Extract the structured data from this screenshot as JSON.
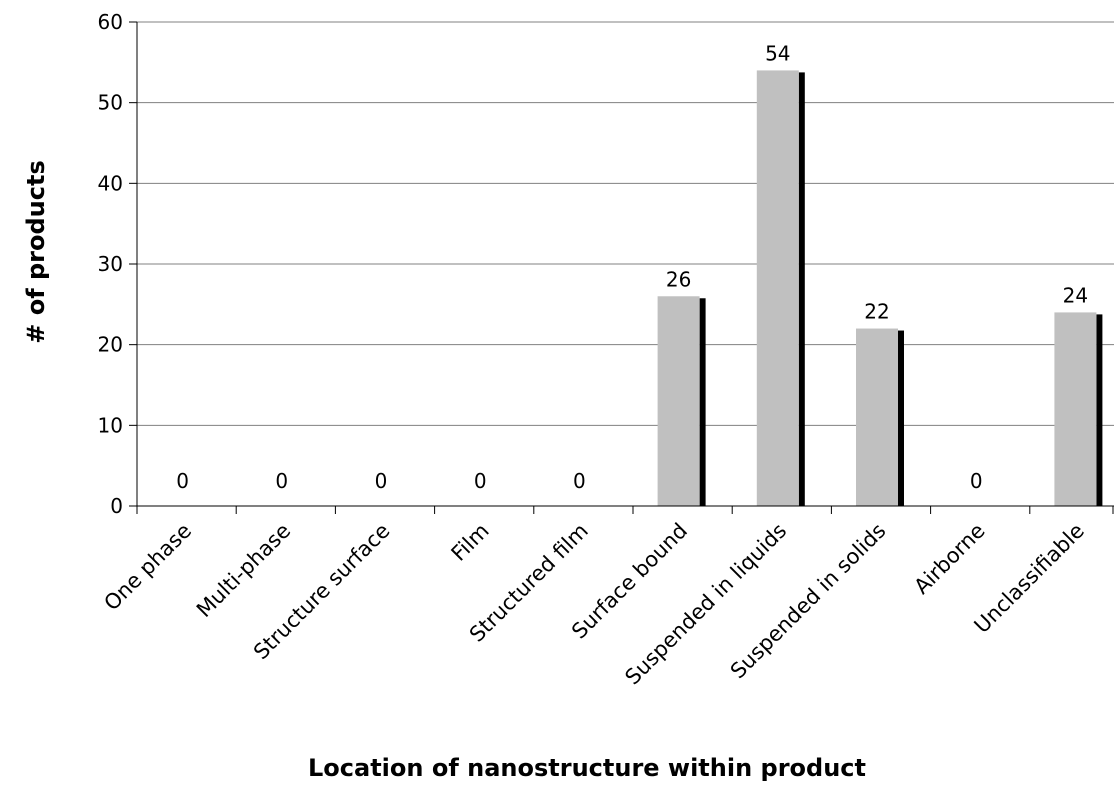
{
  "chart_data": {
    "type": "bar",
    "title": "",
    "xlabel": "Location of nanostructure within product",
    "ylabel": "# of products",
    "ylim": [
      0,
      60
    ],
    "yticks": [
      0,
      10,
      20,
      30,
      40,
      50,
      60
    ],
    "grid": true,
    "legend": "none",
    "categories": [
      "One phase",
      "Multi-phase",
      "Structure surface",
      "Film",
      "Structured film",
      "Surface bound",
      "Suspended in liquids",
      "Suspended in solids",
      "Airborne",
      "Unclassifiable"
    ],
    "values": [
      0,
      0,
      0,
      0,
      0,
      26,
      54,
      22,
      0,
      24
    ],
    "data_labels": [
      "0",
      "0",
      "0",
      "0",
      "0",
      "26",
      "54",
      "22",
      "0",
      "24"
    ],
    "colors": {
      "bar": "#c0c0c0",
      "bar_shadow": "#000000",
      "grid": "#808080",
      "axis": "#000000"
    }
  }
}
